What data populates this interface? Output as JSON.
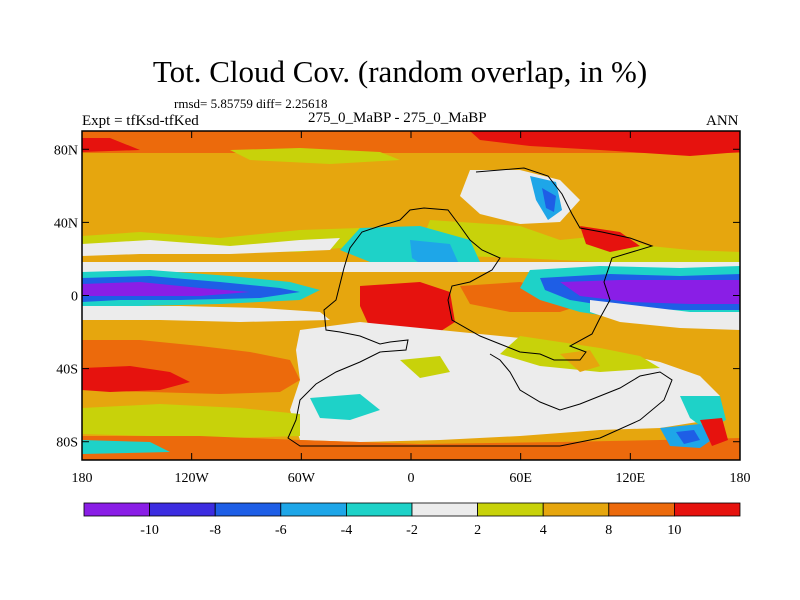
{
  "title": "Tot. Cloud Cov. (random overlap, in %)",
  "stats": "rmsd= 5.85759  diff= 2.25618",
  "experiment": "Expt = tfKsd-tfKed",
  "period": "275_0_MaBP - 275_0_MaBP",
  "season": "ANN",
  "map": {
    "lon_range": [
      -180,
      180
    ],
    "lat_range": [
      -90,
      90
    ],
    "lat_ticks": [
      {
        "value": 80,
        "label": "80N"
      },
      {
        "value": 40,
        "label": "40N"
      },
      {
        "value": 0,
        "label": "0"
      },
      {
        "value": -40,
        "label": "40S"
      },
      {
        "value": -80,
        "label": "80S"
      }
    ],
    "lon_ticks": [
      {
        "value": -180,
        "label": "180"
      },
      {
        "value": -120,
        "label": "120W"
      },
      {
        "value": -60,
        "label": "60W"
      },
      {
        "value": 0,
        "label": "0"
      },
      {
        "value": 60,
        "label": "60E"
      },
      {
        "value": 120,
        "label": "120E"
      },
      {
        "value": 180,
        "label": "180"
      }
    ]
  },
  "colorbar": {
    "colors": [
      "#8a1ee6",
      "#3c2ce0",
      "#1e5ee6",
      "#1ea6e8",
      "#1ed2c8",
      "#ececec",
      "#c8d20a",
      "#e6a60e",
      "#ec6a0c",
      "#e6120e"
    ],
    "labels": [
      {
        "boundary": 1,
        "label": "-10"
      },
      {
        "boundary": 2,
        "label": "-8"
      },
      {
        "boundary": 3,
        "label": "-6"
      },
      {
        "boundary": 4,
        "label": "-4"
      },
      {
        "boundary": 5,
        "label": "-2"
      },
      {
        "boundary": 6,
        "label": "2"
      },
      {
        "boundary": 7,
        "label": "4"
      },
      {
        "boundary": 8,
        "label": "8"
      },
      {
        "boundary": 9,
        "label": "10"
      }
    ]
  }
}
